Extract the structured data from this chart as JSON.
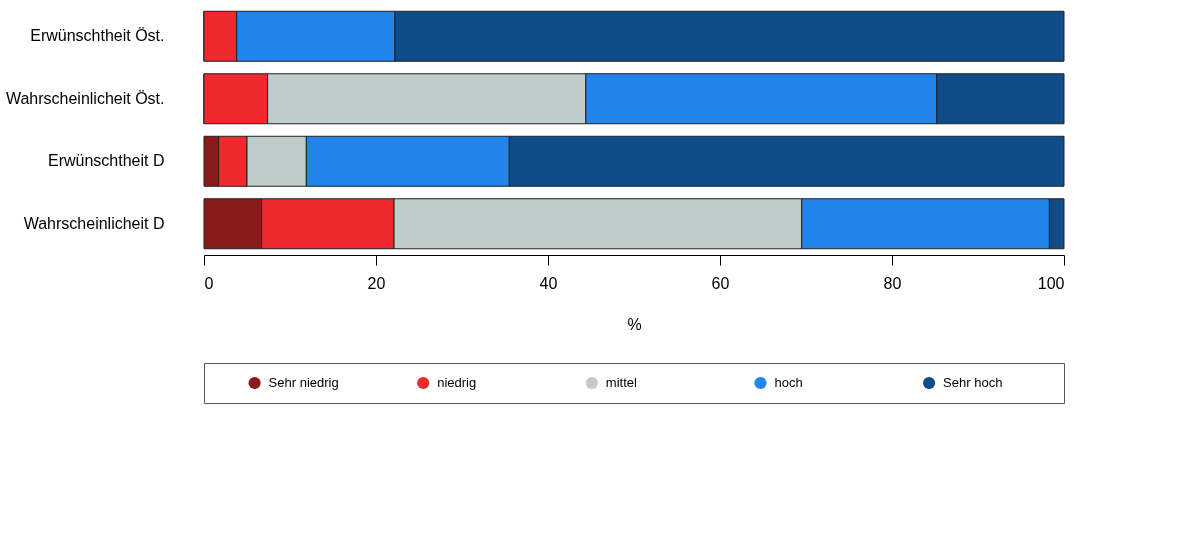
{
  "chart_data": {
    "type": "bar",
    "orientation": "horizontal",
    "stacked": true,
    "xlabel": "%",
    "categories": [
      "Erwünschtheit Öst.",
      "Wahrscheinlicheit Öst.",
      "Erwünschtheit D",
      "Wahrscheinlicheit D"
    ],
    "series": [
      {
        "name": "Sehr niedrig",
        "color": "#8b1a1a",
        "values": [
          0,
          0,
          1.7,
          6.7
        ]
      },
      {
        "name": "niedrig",
        "color": "#ee2a2e",
        "values": [
          3.8,
          7.4,
          3.3,
          15.4
        ]
      },
      {
        "name": "mittel",
        "color": "#c0cccc",
        "values": [
          0,
          37.0,
          6.9,
          47.4
        ]
      },
      {
        "name": "hoch",
        "color": "#2185ee",
        "values": [
          18.4,
          40.8,
          23.6,
          28.8
        ]
      },
      {
        "name": "Sehr hoch",
        "color": "#0e4d8a",
        "values": [
          77.8,
          14.8,
          64.5,
          1.7
        ]
      }
    ],
    "xlim": [
      0,
      100
    ],
    "xticks": [
      0,
      20,
      40,
      60,
      80,
      100
    ],
    "grid": false,
    "legend": "bottom"
  }
}
